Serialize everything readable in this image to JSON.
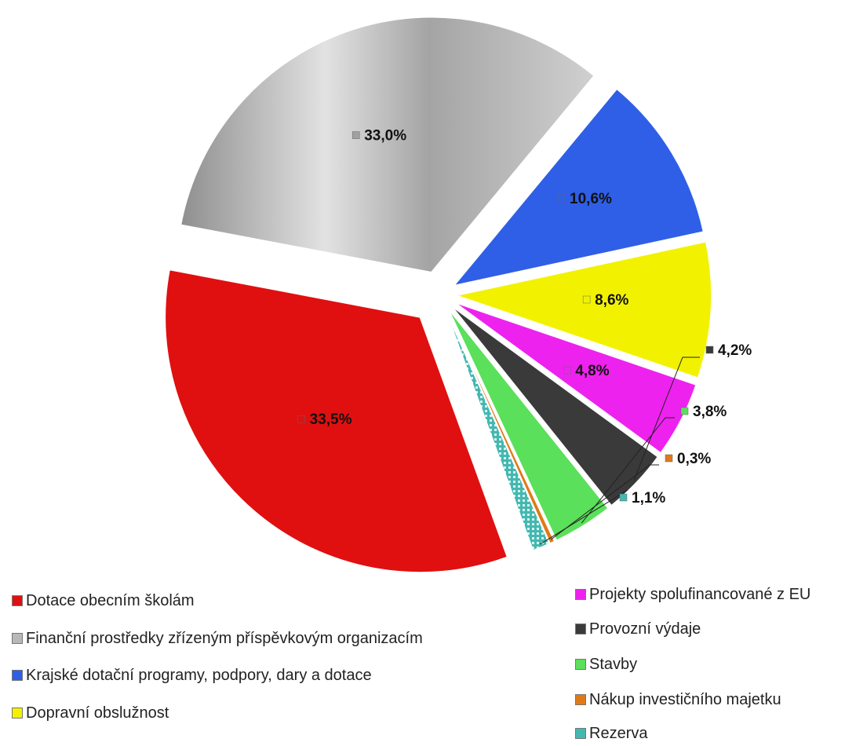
{
  "chart_data": {
    "type": "pie",
    "title": "",
    "slices": [
      {
        "label": "Dotace obecním školám",
        "value": 33.5,
        "value_label": "33,5%",
        "color": "#e01010"
      },
      {
        "label": "Finanční prostředky zřízeným příspěvkovým organizacím",
        "value": 33.0,
        "value_label": "33,0%",
        "color": "#b8b8b8"
      },
      {
        "label": "Krajské dotační programy, podpory, dary a dotace",
        "value": 10.6,
        "value_label": "10,6%",
        "color": "#2f5fe6"
      },
      {
        "label": "Dopravní obslužnost",
        "value": 8.6,
        "value_label": "8,6%",
        "color": "#f2f200"
      },
      {
        "label": "Projekty spolufinancované z EU",
        "value": 4.8,
        "value_label": "4,8%",
        "color": "#ee22ee"
      },
      {
        "label": "Provozní výdaje",
        "value": 4.2,
        "value_label": "4,2%",
        "color": "#3a3a3a"
      },
      {
        "label": "Stavby",
        "value": 3.8,
        "value_label": "3,8%",
        "color": "#5ae05a"
      },
      {
        "label": "Nákup investičního majetku",
        "value": 0.3,
        "value_label": "0,3%",
        "color": "#e07a18"
      },
      {
        "label": "Rezerva",
        "value": 1.1,
        "value_label": "1,1%",
        "color": "#44b8b0"
      }
    ],
    "legend_position": "bottom"
  }
}
